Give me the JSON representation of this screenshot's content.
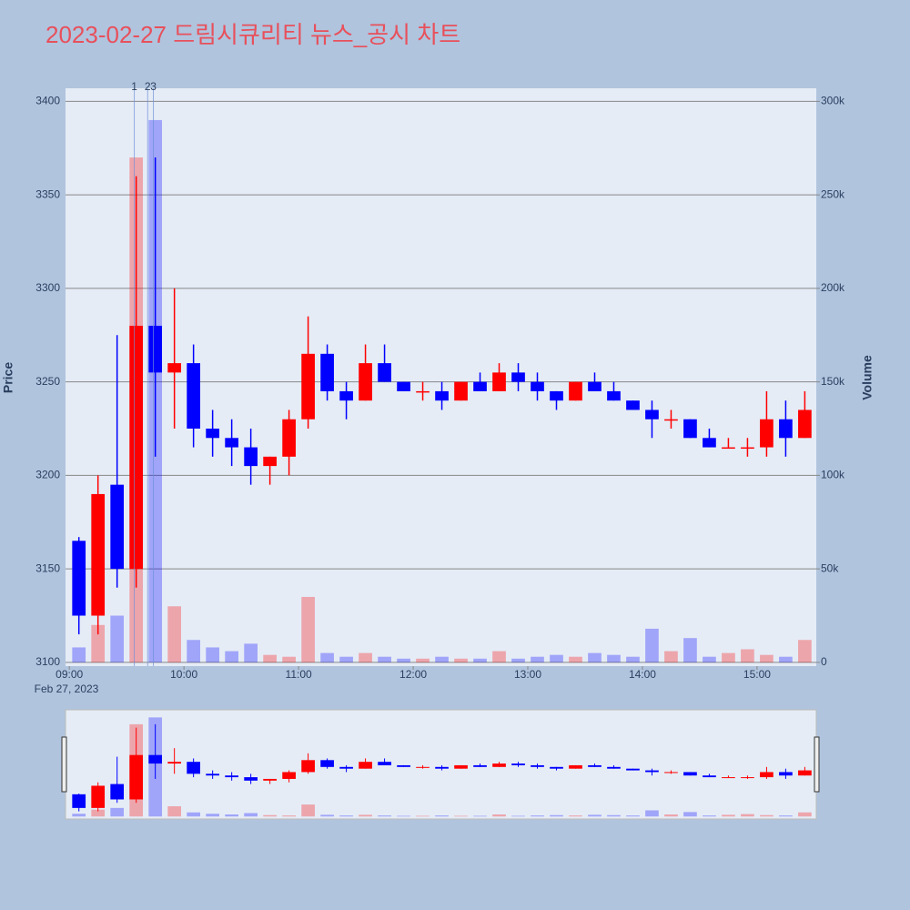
{
  "chart_data": {
    "type": "candlestick",
    "title": "2023-02-27 드림시큐리티 뉴스_공시 차트",
    "y_label": "Price",
    "y2_label": "Volume",
    "x_date_label": "Feb 27, 2023",
    "increasing_color": "#ff0000",
    "decreasing_color": "#0000ff",
    "grid": true,
    "xlim": [
      "2023-02-27 08:58",
      "2023-02-27 15:31"
    ],
    "xticks": [
      {
        "value": "2023-02-27 09:00",
        "label": "09:00"
      },
      {
        "value": "2023-02-27 10:00",
        "label": "10:00"
      },
      {
        "value": "2023-02-27 11:00",
        "label": "11:00"
      },
      {
        "value": "2023-02-27 12:00",
        "label": "12:00"
      },
      {
        "value": "2023-02-27 13:00",
        "label": "13:00"
      },
      {
        "value": "2023-02-27 14:00",
        "label": "14:00"
      },
      {
        "value": "2023-02-27 15:00",
        "label": "15:00"
      }
    ],
    "ylim": [
      3098,
      3407
    ],
    "yticks": [
      3100,
      3150,
      3200,
      3250,
      3300,
      3350,
      3400
    ],
    "y2lim": [
      -2000,
      307000
    ],
    "y2ticks": [
      0,
      {
        "value": 50000,
        "label": "50k"
      },
      {
        "value": 100000,
        "label": "100k"
      },
      {
        "value": 150000,
        "label": "150k"
      },
      {
        "value": 200000,
        "label": "200k"
      },
      {
        "value": 250000,
        "label": "250k"
      },
      {
        "value": 300000,
        "label": "300k"
      }
    ],
    "news_markers": [
      {
        "x": "2023-02-27 09:34",
        "label": "1"
      },
      {
        "x": "2023-02-27 09:41",
        "label": "2"
      },
      {
        "x": "2023-02-27 09:44",
        "label": "3"
      }
    ],
    "x": [
      "2023-02-27 09:00",
      "2023-02-27 09:10",
      "2023-02-27 09:20",
      "2023-02-27 09:30",
      "2023-02-27 09:40",
      "2023-02-27 09:50",
      "2023-02-27 10:00",
      "2023-02-27 10:10",
      "2023-02-27 10:20",
      "2023-02-27 10:30",
      "2023-02-27 10:40",
      "2023-02-27 10:50",
      "2023-02-27 11:00",
      "2023-02-27 11:10",
      "2023-02-27 11:20",
      "2023-02-27 11:30",
      "2023-02-27 11:40",
      "2023-02-27 11:50",
      "2023-02-27 12:00",
      "2023-02-27 12:10",
      "2023-02-27 12:20",
      "2023-02-27 12:30",
      "2023-02-27 12:40",
      "2023-02-27 12:50",
      "2023-02-27 13:00",
      "2023-02-27 13:10",
      "2023-02-27 13:20",
      "2023-02-27 13:30",
      "2023-02-27 13:40",
      "2023-02-27 13:50",
      "2023-02-27 14:00",
      "2023-02-27 14:10",
      "2023-02-27 14:20",
      "2023-02-27 14:30",
      "2023-02-27 14:40",
      "2023-02-27 14:50",
      "2023-02-27 15:00",
      "2023-02-27 15:10",
      "2023-02-27 15:20"
    ],
    "open": [
      3165,
      3125,
      3195,
      3150,
      3280,
      3255,
      3260,
      3225,
      3220,
      3215,
      3205,
      3210,
      3230,
      3265,
      3245,
      3240,
      3260,
      3250,
      3245,
      3245,
      3240,
      3250,
      3245,
      3255,
      3250,
      3245,
      3240,
      3250,
      3245,
      3240,
      3235,
      3230,
      3230,
      3220,
      3215,
      3215,
      3215,
      3230,
      3220
    ],
    "high": [
      3167,
      3200,
      3275,
      3360,
      3370,
      3300,
      3270,
      3235,
      3230,
      3225,
      3210,
      3235,
      3285,
      3270,
      3250,
      3270,
      3270,
      3250,
      3250,
      3250,
      3250,
      3255,
      3260,
      3260,
      3255,
      3245,
      3250,
      3255,
      3250,
      3240,
      3240,
      3235,
      3230,
      3225,
      3220,
      3220,
      3245,
      3240,
      3245
    ],
    "low": [
      3115,
      3115,
      3140,
      3140,
      3210,
      3225,
      3215,
      3210,
      3205,
      3195,
      3195,
      3200,
      3225,
      3240,
      3230,
      3240,
      3250,
      3245,
      3240,
      3235,
      3240,
      3245,
      3245,
      3245,
      3240,
      3235,
      3240,
      3245,
      3240,
      3235,
      3220,
      3225,
      3220,
      3215,
      3215,
      3210,
      3210,
      3210,
      3220
    ],
    "close": [
      3125,
      3190,
      3150,
      3280,
      3255,
      3260,
      3225,
      3220,
      3215,
      3205,
      3210,
      3230,
      3265,
      3245,
      3240,
      3260,
      3250,
      3245,
      3245,
      3240,
      3250,
      3245,
      3255,
      3250,
      3245,
      3240,
      3250,
      3245,
      3240,
      3235,
      3230,
      3230,
      3220,
      3215,
      3215,
      3215,
      3230,
      3220,
      3235
    ],
    "volume": [
      8000,
      20000,
      25000,
      270000,
      290000,
      30000,
      12000,
      8000,
      6000,
      10000,
      4000,
      3000,
      35000,
      5000,
      3000,
      5000,
      3000,
      2000,
      2000,
      3000,
      2000,
      2000,
      6000,
      2000,
      3000,
      4000,
      3000,
      5000,
      4000,
      3000,
      18000,
      6000,
      13000,
      3000,
      5000,
      7000,
      4000,
      3000,
      12000
    ]
  }
}
